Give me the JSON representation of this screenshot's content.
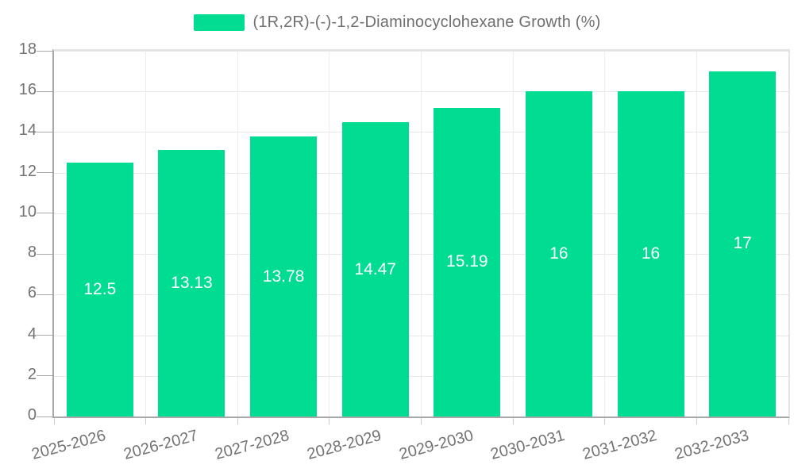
{
  "chart_data": {
    "type": "bar",
    "title": "(1R,2R)-(-)-1,2-Diaminocyclohexane Growth (%)",
    "categories": [
      "2025-2026",
      "2026-2027",
      "2027-2028",
      "2028-2029",
      "2029-2030",
      "2030-2031",
      "2031-2032",
      "2032-2033"
    ],
    "values": [
      12.5,
      13.13,
      13.78,
      14.47,
      15.19,
      16,
      16,
      17
    ],
    "value_labels": [
      "12.5",
      "13.13",
      "13.78",
      "14.47",
      "15.19",
      "16",
      "16",
      "17"
    ],
    "yticks": [
      0,
      2,
      4,
      6,
      8,
      10,
      12,
      14,
      16,
      18
    ],
    "ylim": [
      0,
      18
    ],
    "xlabel": "",
    "ylabel": "",
    "grid": true,
    "legend_position": "top",
    "x_tick_rotation_deg": -15,
    "bar_color": "#00DC92",
    "value_label_color": "#FFFFFF",
    "axis_text_color": "#737373",
    "legend_text_color": "#6F6F6F"
  }
}
